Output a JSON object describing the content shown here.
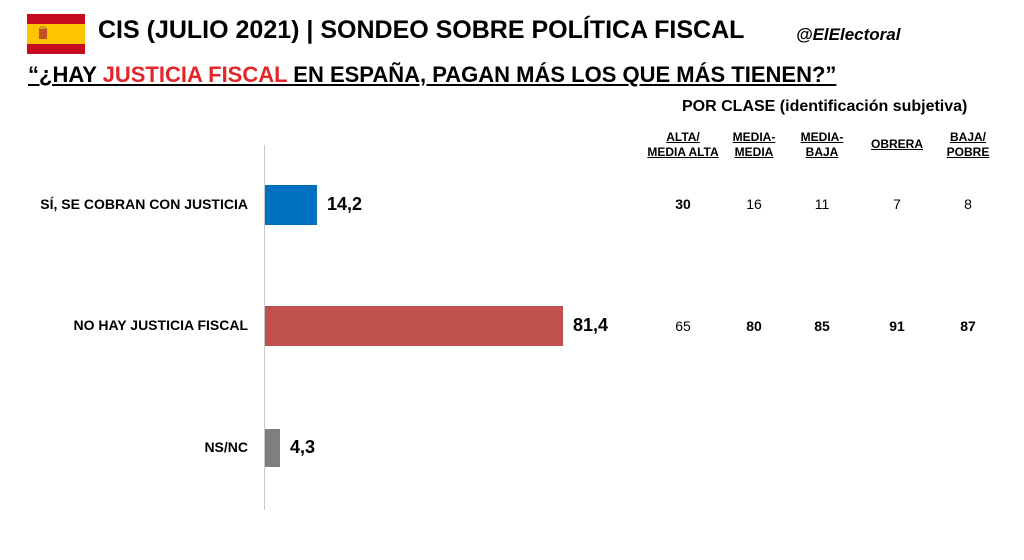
{
  "header": {
    "title": "CIS (JULIO 2021) | SONDEO SOBRE POLÍTICA FISCAL",
    "handle": "@ElElectoral",
    "question_pre": "“¿HAY ",
    "question_highlight": "JUSTICIA FISCAL ",
    "question_post": "EN ESPAÑA, PAGAN MÁS LOS QUE MÁS TIENEN?”"
  },
  "colors": {
    "flag_red": "#c60b1e",
    "flag_yellow": "#ffc400",
    "highlight": "#e3262a"
  },
  "chart_data": [
    {
      "type": "bar",
      "orientation": "horizontal",
      "categories": [
        "SÍ, SE COBRAN CON JUSTICIA",
        "NO HAY JUSTICIA FISCAL",
        "NS/NC"
      ],
      "values": [
        14.2,
        81.4,
        4.3
      ],
      "value_labels": [
        "14,2",
        "81,4",
        "4,3"
      ],
      "colors": [
        "#0070c0",
        "#c0504d",
        "#7f7f7f"
      ],
      "xlim": [
        0,
        100
      ]
    },
    {
      "type": "table",
      "title": "POR CLASE (identificación subjetiva)",
      "columns": [
        "ALTA/\nMEDIA ALTA",
        "MEDIA-\nMEDIA",
        "MEDIA-\nBAJA",
        "OBRERA",
        "BAJA/\nPOBRE"
      ],
      "rows": [
        {
          "category": "SÍ, SE COBRAN CON JUSTICIA",
          "values": [
            30,
            16,
            11,
            7,
            8
          ],
          "bold": [
            true,
            false,
            false,
            false,
            false
          ]
        },
        {
          "category": "NO HAY JUSTICIA FISCAL",
          "values": [
            65,
            80,
            85,
            91,
            87
          ],
          "bold": [
            false,
            true,
            true,
            true,
            true
          ]
        }
      ]
    }
  ]
}
